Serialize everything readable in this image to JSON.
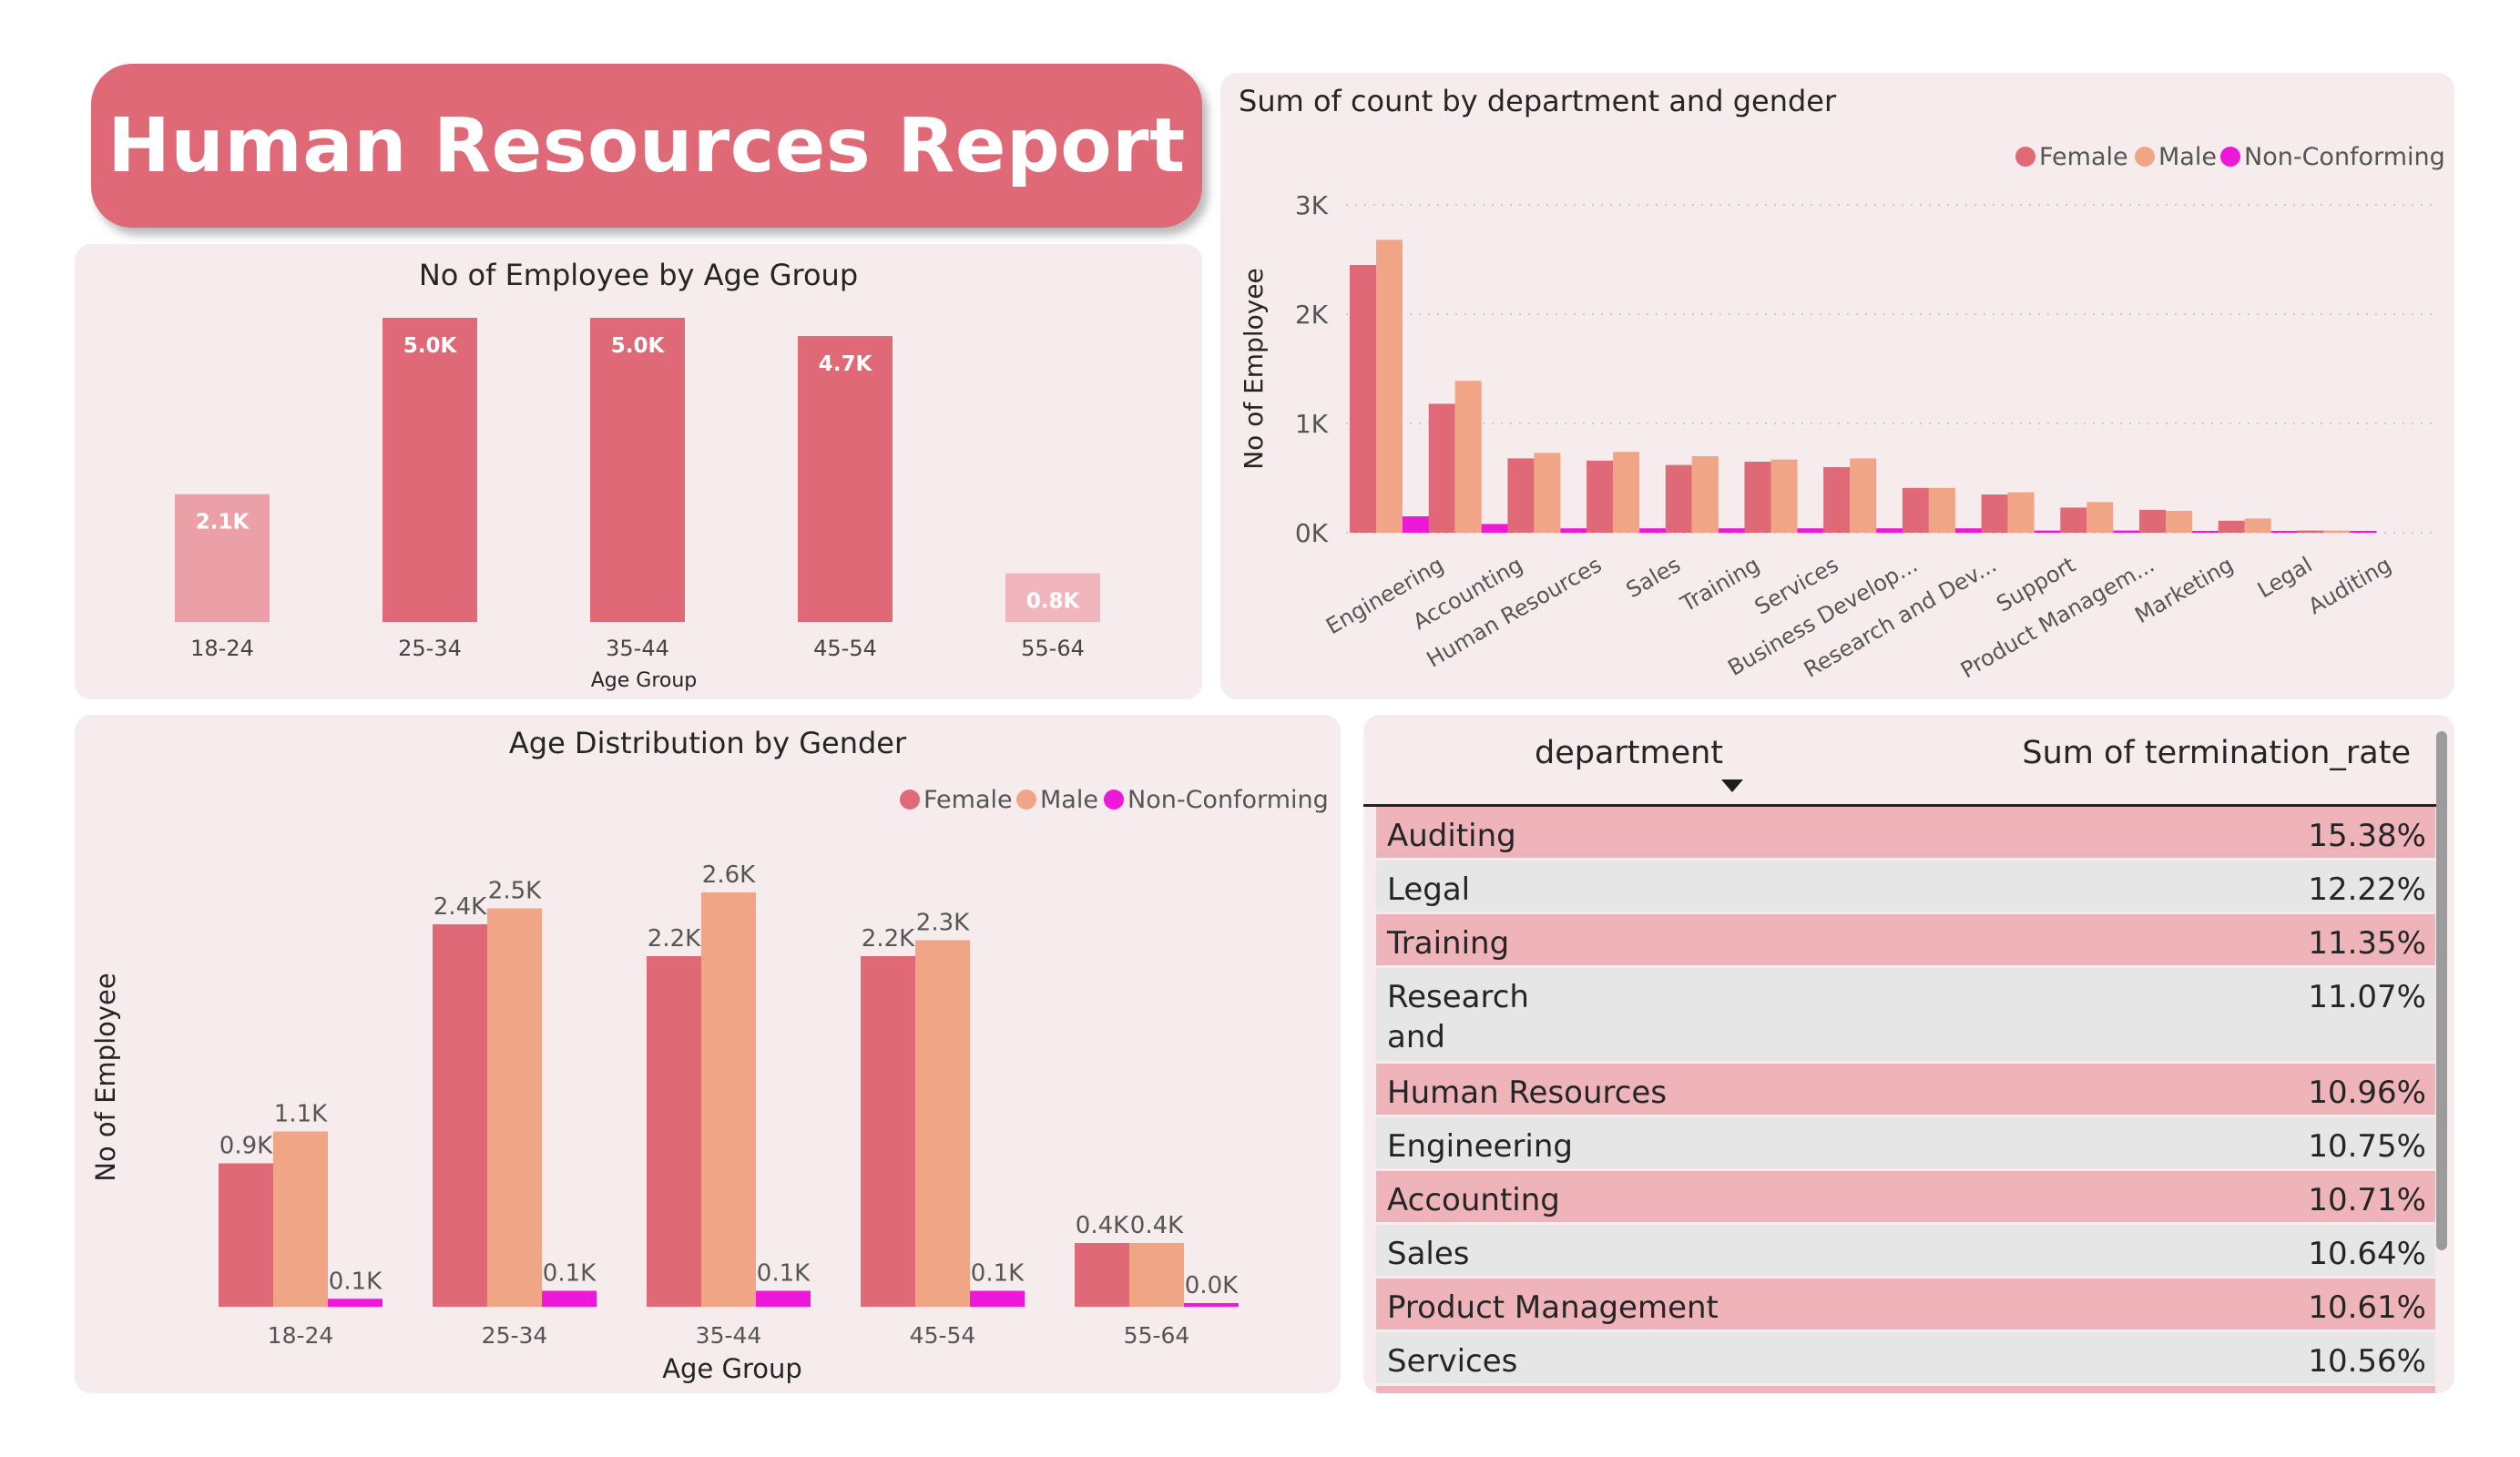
{
  "report_title": "Human Resources Report",
  "colors": {
    "female": "#df6977",
    "male": "#f0a587",
    "nonconforming": "#ee18d8",
    "age_bar_light": "#eb9fa6",
    "age_bar_lighter": "#f1b6bd",
    "panel_bg": "#f6ecee",
    "row_pink": "#eeb4ba",
    "row_gray": "#e6e6e6"
  },
  "legend": [
    "Female",
    "Male",
    "Non-Conforming"
  ],
  "age_group_chart": {
    "type": "bar",
    "title": "No of Employee by Age Group",
    "xlabel": "Age Group",
    "ylabel": "",
    "categories": [
      "18-24",
      "25-34",
      "35-44",
      "45-54",
      "55-64"
    ],
    "values": [
      2.1,
      5.0,
      5.0,
      4.7,
      0.8
    ],
    "labels": [
      "2.1K",
      "5.0K",
      "5.0K",
      "4.7K",
      "0.8K"
    ],
    "ylim": [
      0,
      5.0
    ]
  },
  "department_chart": {
    "type": "bar",
    "title": "Sum of count by department and gender",
    "xlabel": "",
    "ylabel": "No of Employee",
    "categories": [
      "Engineering",
      "Accounting",
      "Human Resources",
      "Sales",
      "Training",
      "Services",
      "Business Develop...",
      "Research and Dev...",
      "Support",
      "Product Managem...",
      "Marketing",
      "Legal",
      "Auditing"
    ],
    "series": [
      {
        "name": "Female",
        "values": [
          2450,
          1180,
          680,
          660,
          620,
          650,
          600,
          410,
          350,
          230,
          210,
          110,
          20
        ]
      },
      {
        "name": "Male",
        "values": [
          2680,
          1390,
          730,
          740,
          700,
          670,
          680,
          410,
          370,
          280,
          200,
          130,
          20
        ]
      },
      {
        "name": "Non-Conforming",
        "values": [
          150,
          80,
          40,
          40,
          40,
          40,
          40,
          40,
          20,
          20,
          10,
          10,
          5
        ]
      }
    ],
    "yticks": [
      "0K",
      "1K",
      "2K",
      "3K"
    ],
    "ylim": [
      0,
      3000
    ],
    "grid": true,
    "legend_position": "top-right"
  },
  "age_gender_chart": {
    "type": "bar",
    "title": "Age Distribution by Gender",
    "xlabel": "Age Group",
    "ylabel": "No of Employee",
    "categories": [
      "18-24",
      "25-34",
      "35-44",
      "45-54",
      "55-64"
    ],
    "series": [
      {
        "name": "Female",
        "values": [
          0.9,
          2.4,
          2.2,
          2.2,
          0.4
        ],
        "labels": [
          "0.9K",
          "2.4K",
          "2.2K",
          "2.2K",
          "0.4K"
        ]
      },
      {
        "name": "Male",
        "values": [
          1.1,
          2.5,
          2.6,
          2.3,
          0.4
        ],
        "labels": [
          "1.1K",
          "2.5K",
          "2.6K",
          "2.3K",
          "0.4K"
        ]
      },
      {
        "name": "Non-Conforming",
        "values": [
          0.05,
          0.1,
          0.1,
          0.1,
          0.02
        ],
        "labels": [
          "0.1K",
          "0.1K",
          "0.1K",
          "0.1K",
          "0.0K"
        ]
      }
    ],
    "ylim": [
      0,
      2.6
    ],
    "legend_position": "top-right"
  },
  "termination_table": {
    "columns": [
      "department",
      "Sum of termination_rate"
    ],
    "rows": [
      {
        "department": "Auditing",
        "rate": "15.38%"
      },
      {
        "department": "Legal",
        "rate": "12.22%"
      },
      {
        "department": "Training",
        "rate": "11.35%"
      },
      {
        "department": "Research and Development",
        "rate": "11.07%"
      },
      {
        "department": "Human Resources",
        "rate": "10.96%"
      },
      {
        "department": "Engineering",
        "rate": "10.75%"
      },
      {
        "department": "Accounting",
        "rate": "10.71%"
      },
      {
        "department": "Sales",
        "rate": "10.64%"
      },
      {
        "department": "Product Management",
        "rate": "10.61%"
      },
      {
        "department": "Services",
        "rate": "10.56%"
      }
    ]
  }
}
